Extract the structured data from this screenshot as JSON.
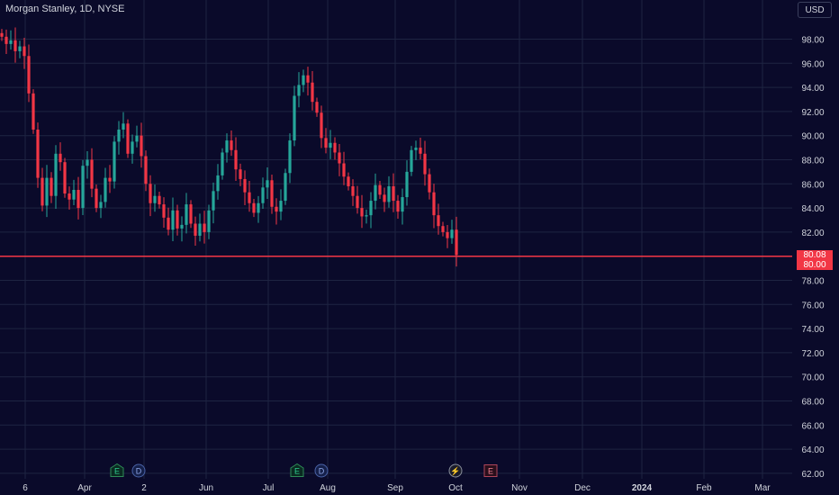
{
  "header": {
    "symbol_label": "Morgan Stanley, 1D, NYSE"
  },
  "currency_button": "USD",
  "price_labels": {
    "last": "80.08",
    "line": "80.00"
  },
  "markers": [
    {
      "letter": "E",
      "kind": "earnings",
      "date_label": "Apr"
    },
    {
      "letter": "D",
      "kind": "dividend",
      "date_label": "Apr"
    },
    {
      "letter": "E",
      "kind": "earnings",
      "date_label": "Jul"
    },
    {
      "letter": "D",
      "kind": "dividend",
      "date_label": "Jul"
    },
    {
      "letter": "⚡",
      "kind": "split",
      "date_label": "Oct"
    },
    {
      "letter": "E",
      "kind": "earnings",
      "date_label": "Oct"
    }
  ],
  "colors": {
    "up": "#26a69a",
    "down": "#f23645",
    "background": "#0a0a2a",
    "grid": "#1e2442",
    "line": "#f23645"
  },
  "chart_data": {
    "type": "candlestick",
    "title": "Morgan Stanley, 1D, NYSE",
    "y_ticks": [
      "98.00",
      "96.00",
      "94.00",
      "92.00",
      "90.00",
      "88.00",
      "86.00",
      "84.00",
      "82.00",
      "80.00",
      "78.00",
      "76.00",
      "74.00",
      "72.00",
      "70.00",
      "68.00",
      "66.00",
      "64.00",
      "62.00"
    ],
    "x_ticks": [
      "6",
      "Apr",
      "2",
      "Jun",
      "Jul",
      "Aug",
      "Sep",
      "Oct",
      "Nov",
      "Dec",
      "2024",
      "Feb",
      "Mar"
    ],
    "ylim": [
      61.3,
      99.8
    ],
    "horizontal_line": 80.0,
    "last_price": 80.08,
    "closes": [
      98.2,
      97.6,
      97.9,
      97.0,
      97.4,
      96.6,
      93.5,
      90.5,
      86.5,
      84.2,
      86.5,
      85.0,
      88.5,
      87.8,
      85.2,
      84.7,
      85.5,
      84.0,
      87.5,
      88.0,
      85.6,
      84.0,
      84.5,
      86.5,
      86.2,
      89.5,
      90.5,
      91.0,
      88.5,
      89.5,
      90.0,
      88.3,
      86.0,
      84.4,
      85.0,
      84.3,
      83.2,
      82.2,
      83.8,
      82.3,
      82.6,
      84.3,
      82.7,
      81.7,
      82.7,
      82.0,
      83.8,
      85.4,
      86.7,
      88.6,
      89.6,
      88.8,
      87.2,
      86.4,
      85.3,
      84.4,
      83.6,
      84.4,
      85.7,
      86.3,
      84.1,
      83.7,
      84.6,
      86.9,
      89.6,
      93.3,
      94.2,
      95.0,
      94.4,
      92.8,
      91.9,
      89.8,
      89.0,
      89.4,
      88.6,
      87.7,
      86.6,
      85.8,
      85.0,
      84.0,
      83.3,
      83.4,
      84.6,
      85.9,
      85.1,
      84.5,
      85.8,
      84.6,
      83.7,
      84.9,
      87.0,
      88.8,
      89.0,
      88.5,
      86.8,
      85.3,
      83.4,
      82.5,
      82.0,
      81.5,
      82.2,
      80.1
    ]
  }
}
